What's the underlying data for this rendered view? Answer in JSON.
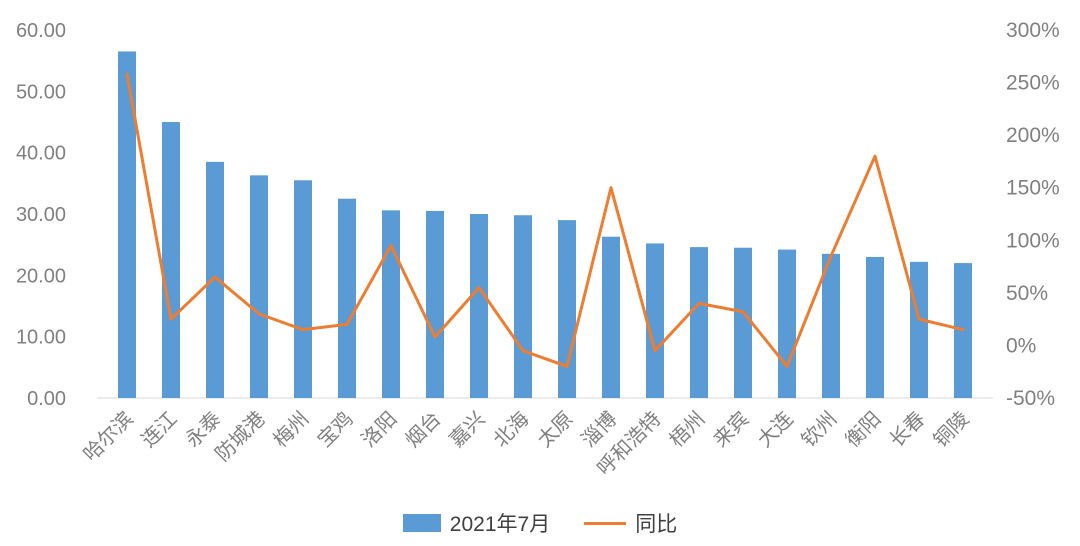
{
  "chart_data": {
    "type": "bar",
    "subtype": "bar+line-combo",
    "title": "",
    "categories": [
      "哈尔滨",
      "连江",
      "永泰",
      "防城港",
      "梅州",
      "宝鸡",
      "洛阳",
      "烟台",
      "嘉兴",
      "北海",
      "太原",
      "淄博",
      "呼和浩特",
      "梧州",
      "来宾",
      "大连",
      "钦州",
      "衡阳",
      "长春",
      "铜陵"
    ],
    "series": [
      {
        "name": "2021年7月",
        "type": "bar",
        "axis": "left",
        "color": "#5B9BD5",
        "values": [
          56.5,
          45.0,
          38.5,
          36.3,
          35.5,
          32.5,
          30.6,
          30.5,
          30.0,
          29.8,
          29.0,
          26.3,
          25.2,
          24.6,
          24.5,
          24.2,
          23.5,
          23.0,
          22.2,
          22.0
        ]
      },
      {
        "name": "同比",
        "type": "line",
        "axis": "right",
        "color": "#ED7D31",
        "values": [
          258,
          25,
          65,
          30,
          15,
          20,
          95,
          8,
          55,
          -5,
          -20,
          150,
          -5,
          40,
          32,
          -20,
          85,
          180,
          25,
          15
        ]
      }
    ],
    "left_axis": {
      "min": 0,
      "max": 60,
      "step": 10,
      "ticks": [
        "0.00",
        "10.00",
        "20.00",
        "30.00",
        "40.00",
        "50.00",
        "60.00"
      ]
    },
    "right_axis": {
      "min": -50,
      "max": 300,
      "step": 50,
      "ticks": [
        "-50%",
        "0%",
        "50%",
        "100%",
        "150%",
        "200%",
        "250%",
        "300%"
      ]
    },
    "grid": false,
    "legend_position": "bottom",
    "legend": [
      {
        "label": "2021年7月",
        "swatch": "bar"
      },
      {
        "label": "同比",
        "swatch": "line"
      }
    ]
  },
  "colors": {
    "bar": "#5B9BD5",
    "line": "#ED7D31",
    "axis_text": "#808080",
    "legend_text": "#404040",
    "axis_line": "#d9d9d9",
    "background": "#ffffff"
  }
}
